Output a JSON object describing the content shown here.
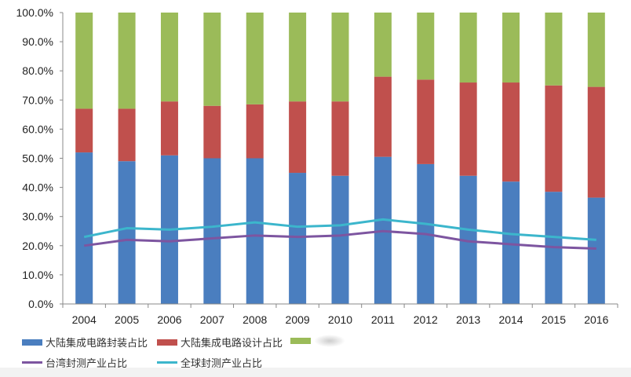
{
  "chart_data": {
    "type": "bar",
    "stacked": true,
    "categories": [
      "2004",
      "2005",
      "2006",
      "2007",
      "2008",
      "2009",
      "2010",
      "2011",
      "2012",
      "2013",
      "2014",
      "2015",
      "2016"
    ],
    "ylim": [
      0,
      100
    ],
    "yticks": [
      "0.0%",
      "10.0%",
      "20.0%",
      "30.0%",
      "40.0%",
      "50.0%",
      "60.0%",
      "70.0%",
      "80.0%",
      "90.0%",
      "100.0%"
    ],
    "grid": false,
    "legend_position": "bottom",
    "series": [
      {
        "name": "大陆集成电路封装占比",
        "kind": "bar",
        "color": "#4a7ebf",
        "values": [
          52,
          49,
          51,
          50,
          50,
          45,
          44,
          50.5,
          48,
          44,
          42,
          38.5,
          36.5
        ]
      },
      {
        "name": "大陆集成电路设计占比",
        "kind": "bar",
        "color": "#c0504d",
        "values": [
          15,
          18,
          18.5,
          18,
          18.5,
          24.5,
          25.5,
          27.5,
          29,
          32,
          34,
          36.5,
          38
        ]
      },
      {
        "name": "",
        "kind": "bar",
        "color": "#9bbb59",
        "values": [
          33,
          33,
          30.5,
          32,
          31.5,
          30.5,
          30.5,
          22,
          23,
          24,
          24,
          25,
          25.5
        ]
      },
      {
        "name": "台湾封测产业占比",
        "kind": "line",
        "color": "#7d55a0",
        "values": [
          20,
          22,
          21.5,
          22.5,
          23.5,
          23,
          23.5,
          25,
          24,
          21.5,
          20.5,
          19.5,
          19
        ]
      },
      {
        "name": "全球封测产业占比",
        "kind": "line",
        "color": "#3cb6cc",
        "values": [
          23,
          26,
          25.5,
          26.5,
          28,
          26.5,
          27,
          29,
          27.5,
          25.5,
          24,
          23,
          22
        ]
      }
    ]
  }
}
